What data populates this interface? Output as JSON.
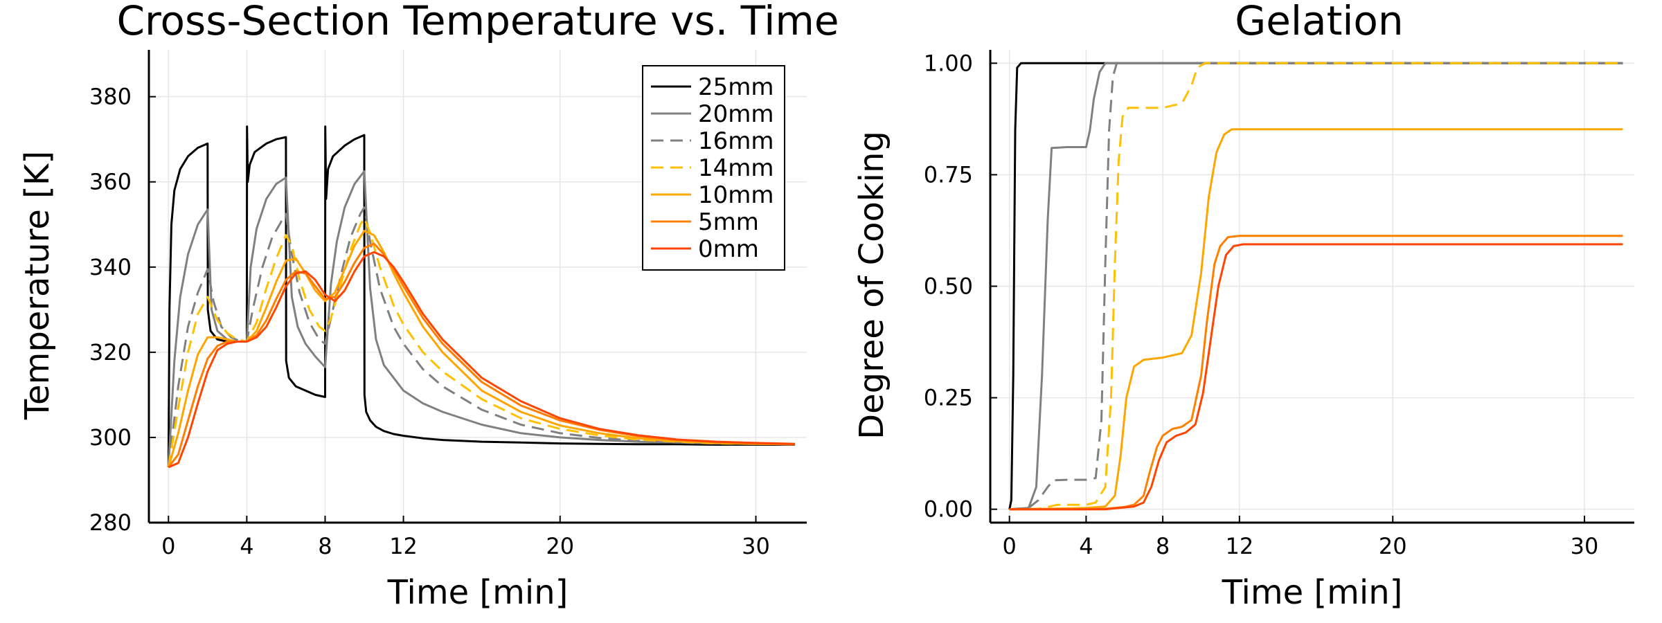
{
  "colors": {
    "25mm": "#000000",
    "20mm": "#808080",
    "16mm": "#808080",
    "14mm": "#FFC000",
    "10mm": "#FFA500",
    "5mm": "#FF7F00",
    "0mm": "#FF4500"
  },
  "chart_data": [
    {
      "type": "line",
      "title": "Cross-Section Temperature vs. Time",
      "xlabel": "Time [min]",
      "ylabel": "Temperature [K]",
      "xlim": [
        -1,
        32.6
      ],
      "ylim": [
        280,
        391
      ],
      "xticks": [
        0,
        4,
        8,
        12,
        20,
        30
      ],
      "yticks": [
        280,
        300,
        320,
        340,
        360,
        380
      ],
      "grid": true,
      "legend": "top-right",
      "series": [
        {
          "name": "25mm",
          "style": "solid",
          "x": [
            0,
            0.05,
            0.15,
            0.3,
            0.6,
            1.0,
            1.5,
            2.0,
            2.01,
            2.15,
            2.5,
            3.0,
            3.5,
            4.0,
            4.01,
            4.05,
            4.15,
            4.4,
            5.0,
            5.5,
            6.0,
            6.01,
            6.15,
            6.5,
            7.0,
            7.5,
            8.0,
            8.01,
            8.05,
            8.15,
            8.4,
            9.0,
            9.5,
            10.0,
            10.01,
            10.1,
            10.3,
            10.6,
            11,
            11.5,
            12,
            13,
            14,
            16,
            18,
            20,
            22,
            24,
            26,
            28,
            30,
            32
          ],
          "values": [
            293,
            330,
            350,
            358,
            363,
            366,
            368,
            369,
            330,
            325,
            323,
            322.5,
            322.5,
            322.5,
            373,
            360,
            364,
            367,
            369,
            370,
            370.5,
            318,
            314,
            312,
            311,
            310,
            309.5,
            373,
            356,
            363,
            366,
            368.5,
            370,
            371,
            310,
            306,
            304,
            302.5,
            301.5,
            300.8,
            300.4,
            299.8,
            299.4,
            299,
            298.8,
            298.6,
            298.5,
            298.4,
            298.4,
            298.3,
            298.3,
            298.3
          ]
        },
        {
          "name": "20mm",
          "style": "solid",
          "x": [
            0,
            0.3,
            0.6,
            1.0,
            1.5,
            2.0,
            2.2,
            2.5,
            3.0,
            3.5,
            4.0,
            4.2,
            4.5,
            5.0,
            5.5,
            6.0,
            6.3,
            6.6,
            7.0,
            7.5,
            8.0,
            8.3,
            8.6,
            9.0,
            9.5,
            10.0,
            10.3,
            10.6,
            11,
            12,
            13,
            14,
            16,
            18,
            20,
            22,
            24,
            26,
            28,
            30,
            32
          ],
          "values": [
            293,
            318,
            333,
            343,
            350,
            353.5,
            330,
            325,
            323,
            322.5,
            322.5,
            340,
            349,
            356,
            359.5,
            361,
            333,
            326,
            322,
            319,
            316.5,
            336,
            346,
            354,
            359.5,
            362.5,
            335,
            323,
            317,
            311,
            308,
            306,
            303,
            301,
            300,
            299.4,
            299,
            298.8,
            298.6,
            298.5,
            298.4
          ]
        },
        {
          "name": "16mm",
          "style": "dashed",
          "x": [
            0,
            0.5,
            1.0,
            1.5,
            2.0,
            2.3,
            2.7,
            3.2,
            3.7,
            4.0,
            4.3,
            4.8,
            5.3,
            5.8,
            6.0,
            6.3,
            6.7,
            7.2,
            7.7,
            8.0,
            8.3,
            8.8,
            9.3,
            9.8,
            10.0,
            10.3,
            10.8,
            11.5,
            12,
            13,
            14,
            16,
            18,
            20,
            22,
            24,
            26,
            28,
            30,
            32
          ],
          "values": [
            293,
            312,
            326,
            334,
            339.5,
            332,
            326,
            323.5,
            322.5,
            322.5,
            330,
            340,
            347,
            351,
            352.5,
            343,
            334,
            327,
            323,
            322,
            328,
            338,
            347,
            352.5,
            354,
            346,
            335,
            326,
            322,
            316,
            312,
            306.5,
            303,
            301,
            299.9,
            299.2,
            298.8,
            298.6,
            298.5,
            298.4
          ]
        },
        {
          "name": "14mm",
          "style": "dashed",
          "x": [
            0,
            0.5,
            1.0,
            1.5,
            2.0,
            2.5,
            3.0,
            3.5,
            4.0,
            4.5,
            5.0,
            5.5,
            6.0,
            6.3,
            6.7,
            7.2,
            7.7,
            8.0,
            8.3,
            8.8,
            9.3,
            9.8,
            10.0,
            10.3,
            10.8,
            11.5,
            12,
            13,
            14,
            16,
            18,
            20,
            22,
            24,
            26,
            28,
            30,
            32
          ],
          "values": [
            293,
            307,
            320,
            329,
            333,
            327.5,
            324.5,
            323,
            322.5,
            327,
            335,
            342,
            347.5,
            345,
            337,
            330,
            326,
            325,
            328,
            336,
            344,
            350,
            351.5,
            348,
            340,
            331,
            326.5,
            320,
            315.5,
            309,
            304.5,
            302,
            300.5,
            299.5,
            299,
            298.6,
            298.5,
            298.4
          ]
        },
        {
          "name": "10mm",
          "style": "solid",
          "x": [
            0,
            0.5,
            1.0,
            1.5,
            2.0,
            2.5,
            3.0,
            3.5,
            4.0,
            4.5,
            5.0,
            5.5,
            6.0,
            6.5,
            7.0,
            7.5,
            8.0,
            8.5,
            9.0,
            9.5,
            10.0,
            10.5,
            11,
            11.5,
            12,
            13,
            14,
            16,
            18,
            20,
            22,
            24,
            26,
            28,
            30,
            32
          ],
          "values": [
            293,
            301,
            311,
            319.5,
            323.5,
            323.5,
            323,
            322.5,
            322.5,
            325,
            330.5,
            336.5,
            341.5,
            342,
            338.5,
            334.5,
            332,
            334,
            339.5,
            345,
            348.5,
            347.5,
            343.5,
            338.5,
            334,
            326,
            320,
            311,
            306,
            302.8,
            301,
            299.8,
            299.1,
            298.7,
            298.5,
            298.4
          ]
        },
        {
          "name": "5mm",
          "style": "solid",
          "x": [
            0,
            0.5,
            1.0,
            1.5,
            2.0,
            2.5,
            3.0,
            3.5,
            4.0,
            4.5,
            5.0,
            5.5,
            6.0,
            6.5,
            7.0,
            7.5,
            8.0,
            8.5,
            9.0,
            9.5,
            10.0,
            10.5,
            11,
            11.5,
            12,
            13,
            14,
            16,
            18,
            20,
            22,
            24,
            26,
            28,
            30,
            32
          ],
          "values": [
            293,
            296,
            304,
            312,
            318.5,
            321.5,
            322.5,
            322.5,
            322.5,
            324,
            327.5,
            332.5,
            337,
            339,
            338.5,
            335.5,
            332.5,
            333,
            336.5,
            341,
            344.5,
            345.5,
            343,
            339.5,
            335.5,
            328,
            322,
            313,
            307.5,
            304,
            301.8,
            300.3,
            299.4,
            298.9,
            298.6,
            298.4
          ]
        },
        {
          "name": "0mm",
          "style": "solid",
          "x": [
            0,
            0.5,
            1.0,
            1.5,
            2.0,
            2.5,
            3.0,
            3.5,
            4.0,
            4.5,
            5.0,
            5.5,
            6.0,
            6.5,
            7.0,
            7.5,
            8.0,
            8.5,
            9.0,
            9.5,
            10.0,
            10.5,
            11,
            11.5,
            12,
            13,
            14,
            16,
            18,
            20,
            22,
            24,
            26,
            28,
            30,
            32
          ],
          "values": [
            293,
            294,
            300,
            308,
            315.5,
            320.5,
            322,
            322.5,
            322.5,
            323.5,
            326,
            330.5,
            335.5,
            338.5,
            339,
            337,
            333.5,
            332,
            334.5,
            339,
            342.5,
            343.5,
            342.5,
            340,
            336.5,
            329,
            323,
            314,
            308.5,
            304.5,
            302,
            300.5,
            299.5,
            299,
            298.7,
            298.5
          ]
        }
      ]
    },
    {
      "type": "line",
      "title": "Gelation",
      "xlabel": "Time [min]",
      "ylabel": "Degree of Cooking",
      "xlim": [
        -1,
        32.6
      ],
      "ylim": [
        -0.03,
        1.03
      ],
      "xticks": [
        0,
        4,
        8,
        12,
        20,
        30
      ],
      "yticks": [
        0.0,
        0.25,
        0.5,
        0.75,
        1.0
      ],
      "ytick_labels": [
        "0.00",
        "0.25",
        "0.50",
        "0.75",
        "1.00"
      ],
      "grid": true,
      "series": [
        {
          "name": "25mm",
          "style": "solid",
          "x": [
            0,
            0.1,
            0.2,
            0.3,
            0.4,
            0.6,
            32
          ],
          "values": [
            0,
            0.02,
            0.3,
            0.85,
            0.99,
            1.0,
            1.0
          ]
        },
        {
          "name": "20mm",
          "style": "solid",
          "x": [
            0,
            1.0,
            1.4,
            1.7,
            2.0,
            2.2,
            3.0,
            4.0,
            4.2,
            4.4,
            4.7,
            5.0,
            32
          ],
          "values": [
            0,
            0.003,
            0.05,
            0.3,
            0.65,
            0.81,
            0.812,
            0.812,
            0.85,
            0.92,
            0.98,
            1.0,
            1.0
          ]
        },
        {
          "name": "16mm",
          "style": "dashed",
          "x": [
            0,
            1.0,
            1.5,
            2.0,
            2.3,
            3.0,
            4.0,
            4.5,
            4.8,
            5.0,
            5.2,
            5.4,
            5.6,
            6.0,
            32
          ],
          "values": [
            0,
            0.003,
            0.02,
            0.05,
            0.065,
            0.066,
            0.066,
            0.07,
            0.2,
            0.55,
            0.85,
            0.97,
            1.0,
            1.0,
            1.0
          ]
        },
        {
          "name": "14mm",
          "style": "dashed",
          "x": [
            0,
            1.5,
            2.0,
            2.5,
            3.0,
            4.0,
            4.5,
            5.0,
            5.3,
            5.5,
            5.7,
            5.9,
            6.2,
            7.0,
            8.0,
            9.0,
            9.5,
            9.8,
            10.2,
            32
          ],
          "values": [
            0,
            0.001,
            0.005,
            0.01,
            0.01,
            0.01,
            0.015,
            0.05,
            0.25,
            0.55,
            0.78,
            0.88,
            0.9,
            0.9,
            0.9,
            0.91,
            0.95,
            0.99,
            1.0,
            1.0
          ]
        },
        {
          "name": "10mm",
          "style": "solid",
          "x": [
            0,
            2.0,
            3.0,
            4.0,
            5.0,
            5.5,
            5.8,
            6.1,
            6.5,
            7.0,
            8.0,
            9.0,
            9.5,
            10.0,
            10.4,
            10.8,
            11.2,
            11.6,
            12,
            32
          ],
          "values": [
            0,
            0.001,
            0.002,
            0.003,
            0.006,
            0.03,
            0.12,
            0.25,
            0.32,
            0.335,
            0.34,
            0.35,
            0.39,
            0.53,
            0.7,
            0.8,
            0.84,
            0.852,
            0.852,
            0.852
          ]
        },
        {
          "name": "5mm",
          "style": "solid",
          "x": [
            0,
            4.0,
            5.0,
            5.5,
            6.0,
            6.5,
            7.0,
            7.3,
            7.7,
            8.0,
            8.5,
            9.0,
            9.5,
            10.0,
            10.3,
            10.7,
            11.0,
            11.4,
            12,
            32
          ],
          "values": [
            0,
            0.0,
            0.001,
            0.003,
            0.005,
            0.01,
            0.03,
            0.08,
            0.14,
            0.165,
            0.18,
            0.185,
            0.2,
            0.3,
            0.42,
            0.55,
            0.59,
            0.61,
            0.613,
            0.613
          ]
        },
        {
          "name": "0mm",
          "style": "solid",
          "x": [
            0,
            4.0,
            5.0,
            5.5,
            6.0,
            6.5,
            7.0,
            7.4,
            7.8,
            8.2,
            8.7,
            9.2,
            9.7,
            10.1,
            10.5,
            10.9,
            11.3,
            11.7,
            12.2,
            32
          ],
          "values": [
            0,
            0.0,
            0.0,
            0.002,
            0.004,
            0.006,
            0.015,
            0.05,
            0.11,
            0.15,
            0.165,
            0.172,
            0.19,
            0.26,
            0.38,
            0.5,
            0.57,
            0.59,
            0.594,
            0.594
          ]
        }
      ]
    }
  ]
}
